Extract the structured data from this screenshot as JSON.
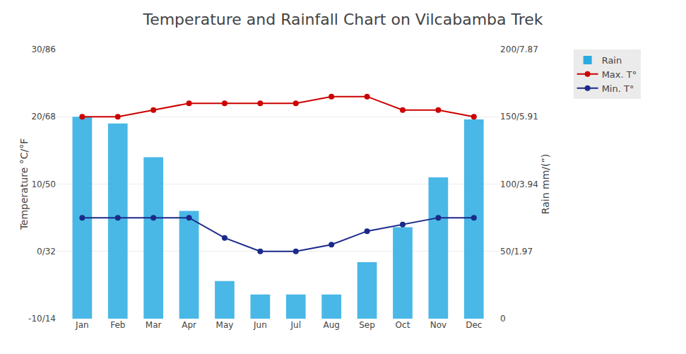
{
  "chart_data": {
    "type": "combo",
    "title": "Temperature and Rainfall Chart on Vilcabamba Trek",
    "categories": [
      "Jan",
      "Feb",
      "Mar",
      "Apr",
      "May",
      "Jun",
      "Jul",
      "Aug",
      "Sep",
      "Oct",
      "Nov",
      "Dec"
    ],
    "series": [
      {
        "name": "Rain",
        "type": "bar",
        "color": "#29ABE2",
        "axis": "y2",
        "values": [
          150,
          145,
          120,
          80,
          28,
          18,
          18,
          18,
          42,
          68,
          105,
          148
        ]
      },
      {
        "name": "Max. T°",
        "type": "line",
        "color": "#CC0000",
        "marker": "circle",
        "values": [
          20,
          20,
          21,
          22,
          22,
          22,
          22,
          23,
          23,
          21,
          21,
          20
        ]
      },
      {
        "name": "Min. T°",
        "type": "line",
        "color": "#1B2A8A",
        "marker": "circle",
        "values": [
          5,
          5,
          5,
          5,
          2,
          0,
          0,
          1,
          3,
          4,
          5,
          5
        ]
      }
    ],
    "ylabel": "Temperature °C/°F",
    "y2label": "Rain mm/(”)",
    "ylim": [
      -10,
      30
    ],
    "yticks": [
      {
        "value": -10,
        "label": "-10/14"
      },
      {
        "value": 0,
        "label": "0/32"
      },
      {
        "value": 10,
        "label": "10/50"
      },
      {
        "value": 20,
        "label": "20/68"
      },
      {
        "value": 30,
        "label": "30/86"
      }
    ],
    "y2lim": [
      0,
      200
    ],
    "y2ticks": [
      0,
      {
        "value": 50,
        "label": "50/1.97"
      },
      {
        "value": 100,
        "label": "100/3.94"
      },
      {
        "value": 150,
        "label": "150/5.91"
      },
      {
        "value": 200,
        "label": "200/7.87"
      }
    ],
    "grid": true,
    "legend": "right"
  }
}
